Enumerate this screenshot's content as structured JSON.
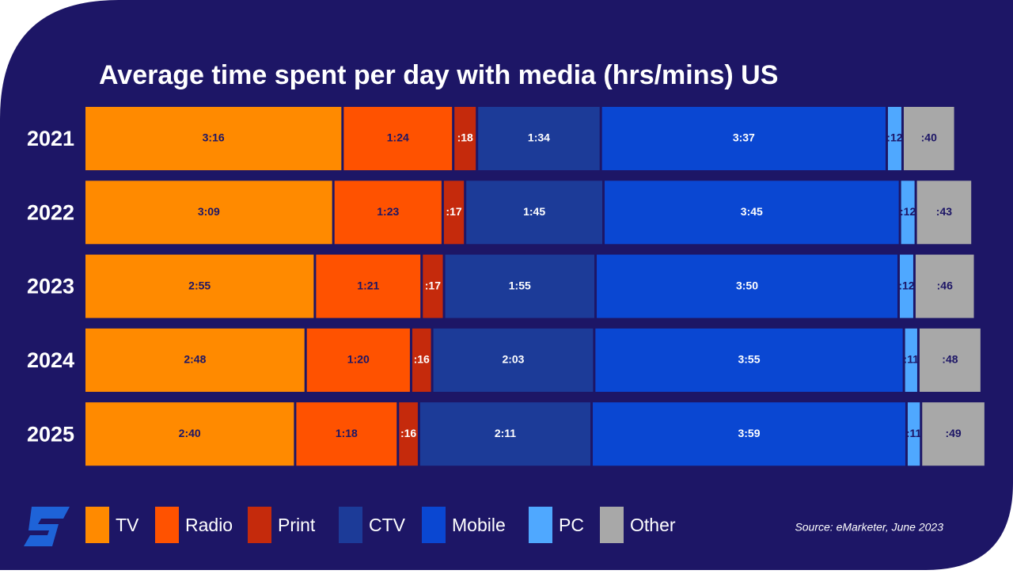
{
  "chart_data": {
    "type": "stacked-bar-horizontal",
    "title": "Average time spent per day with media (hrs/mins) US",
    "categories": [
      "2021",
      "2022",
      "2023",
      "2024",
      "2025"
    ],
    "series": [
      {
        "name": "TV",
        "color": "#ff8a00",
        "values": [
          196,
          189,
          175,
          168,
          160
        ],
        "value_labels": [
          "3:16",
          "3:09",
          "2:55",
          "2:48",
          "2:40"
        ]
      },
      {
        "name": "Radio",
        "color": "#ff5200",
        "values": [
          84,
          83,
          81,
          80,
          78
        ],
        "value_labels": [
          "1:24",
          "1:23",
          "1:21",
          "1:20",
          "1:18"
        ]
      },
      {
        "name": "Print",
        "color": "#c52a0c",
        "values": [
          18,
          17,
          17,
          16,
          16
        ],
        "value_labels": [
          ":18",
          ":17",
          ":17",
          ":16",
          ":16"
        ]
      },
      {
        "name": "CTV",
        "color": "#1c3b98",
        "values": [
          94,
          105,
          115,
          123,
          131
        ],
        "value_labels": [
          "1:34",
          "1:45",
          "1:55",
          "2:03",
          "2:11"
        ]
      },
      {
        "name": "Mobile",
        "color": "#0a47d2",
        "values": [
          217,
          225,
          230,
          235,
          239
        ],
        "value_labels": [
          "3:37",
          "3:45",
          "3:50",
          "3:55",
          "3:59"
        ]
      },
      {
        "name": "PC",
        "color": "#4fa8ff",
        "values": [
          12,
          12,
          12,
          11,
          11
        ],
        "value_labels": [
          ":12",
          ":12",
          ":12",
          ":11",
          ":11"
        ]
      },
      {
        "name": "Other",
        "color": "#a8a8a8",
        "values": [
          40,
          43,
          46,
          48,
          49
        ],
        "value_labels": [
          ":40",
          ":43",
          ":46",
          ":48",
          ":49"
        ]
      }
    ],
    "source": "Source: eMarketer, June 2023"
  }
}
